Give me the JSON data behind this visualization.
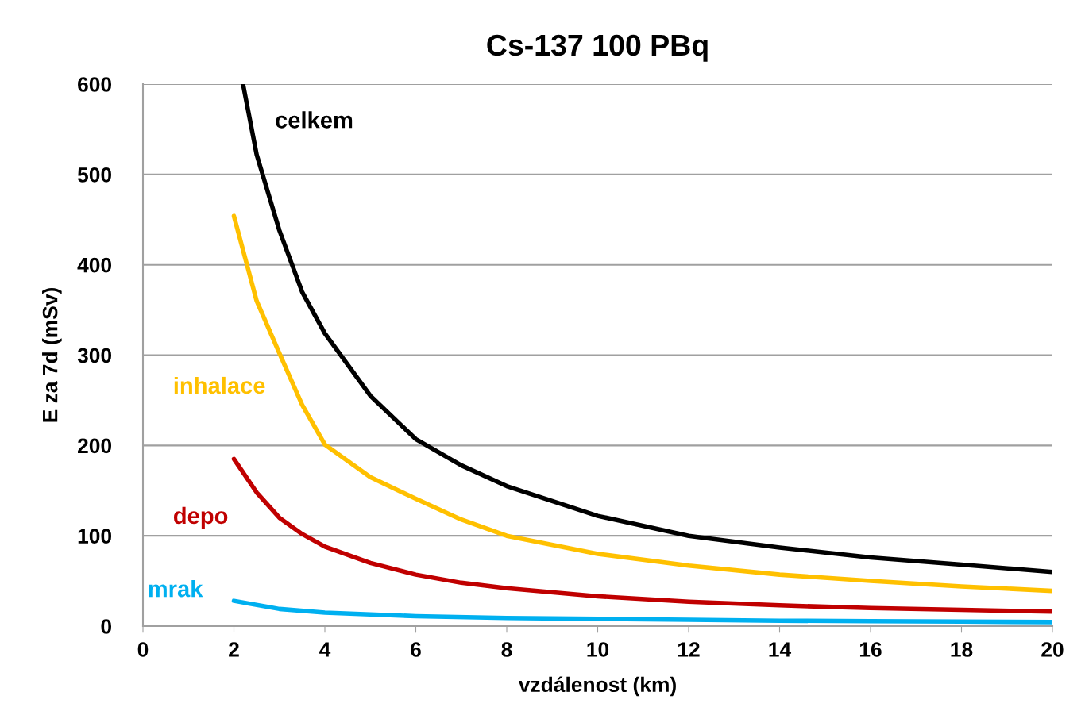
{
  "chart_data": {
    "type": "line",
    "title": "Cs-137 100 PBq",
    "xlabel": "vzdálenost (km)",
    "ylabel": "E za 7d (mSv)",
    "xlim": [
      0,
      20
    ],
    "xticks": [
      0,
      2,
      4,
      6,
      8,
      10,
      12,
      14,
      16,
      18,
      20
    ],
    "ylim": [
      0,
      600
    ],
    "yticks": [
      0,
      100,
      200,
      300,
      400,
      500,
      600
    ],
    "grid": "y",
    "legend": false,
    "marker": "none",
    "line_style": "solid",
    "series": [
      {
        "name": "celkem",
        "color": "#000000",
        "x": [
          2.2,
          2.5,
          3,
          3.5,
          4,
          5,
          6,
          7,
          8,
          10,
          12,
          14,
          16,
          18,
          20
        ],
        "values": [
          600,
          522,
          438,
          370,
          324,
          255,
          207,
          178,
          155,
          122,
          100,
          87,
          76,
          68,
          60
        ]
      },
      {
        "name": "inhalace",
        "color": "#ffc000",
        "x": [
          2,
          2.5,
          3,
          3.5,
          4,
          5,
          6,
          7,
          8,
          10,
          12,
          14,
          16,
          18,
          20
        ],
        "values": [
          454,
          360,
          302,
          245,
          201,
          165,
          141,
          118,
          100,
          80,
          67,
          57,
          50,
          44,
          39
        ]
      },
      {
        "name": "depo",
        "color": "#c00000",
        "x": [
          2,
          2.5,
          3,
          3.5,
          4,
          5,
          6,
          7,
          8,
          10,
          12,
          14,
          16,
          18,
          20
        ],
        "values": [
          185,
          148,
          120,
          102,
          88,
          70,
          57,
          48,
          42,
          33,
          27,
          23,
          20,
          18,
          16
        ]
      },
      {
        "name": "mrak",
        "color": "#00b0f0",
        "x": [
          2,
          3,
          4,
          5,
          6,
          8,
          10,
          12,
          14,
          16,
          18,
          20
        ],
        "values": [
          28,
          19,
          15,
          13,
          11,
          9,
          8,
          7,
          6,
          5.5,
          5,
          4.5
        ]
      }
    ]
  }
}
